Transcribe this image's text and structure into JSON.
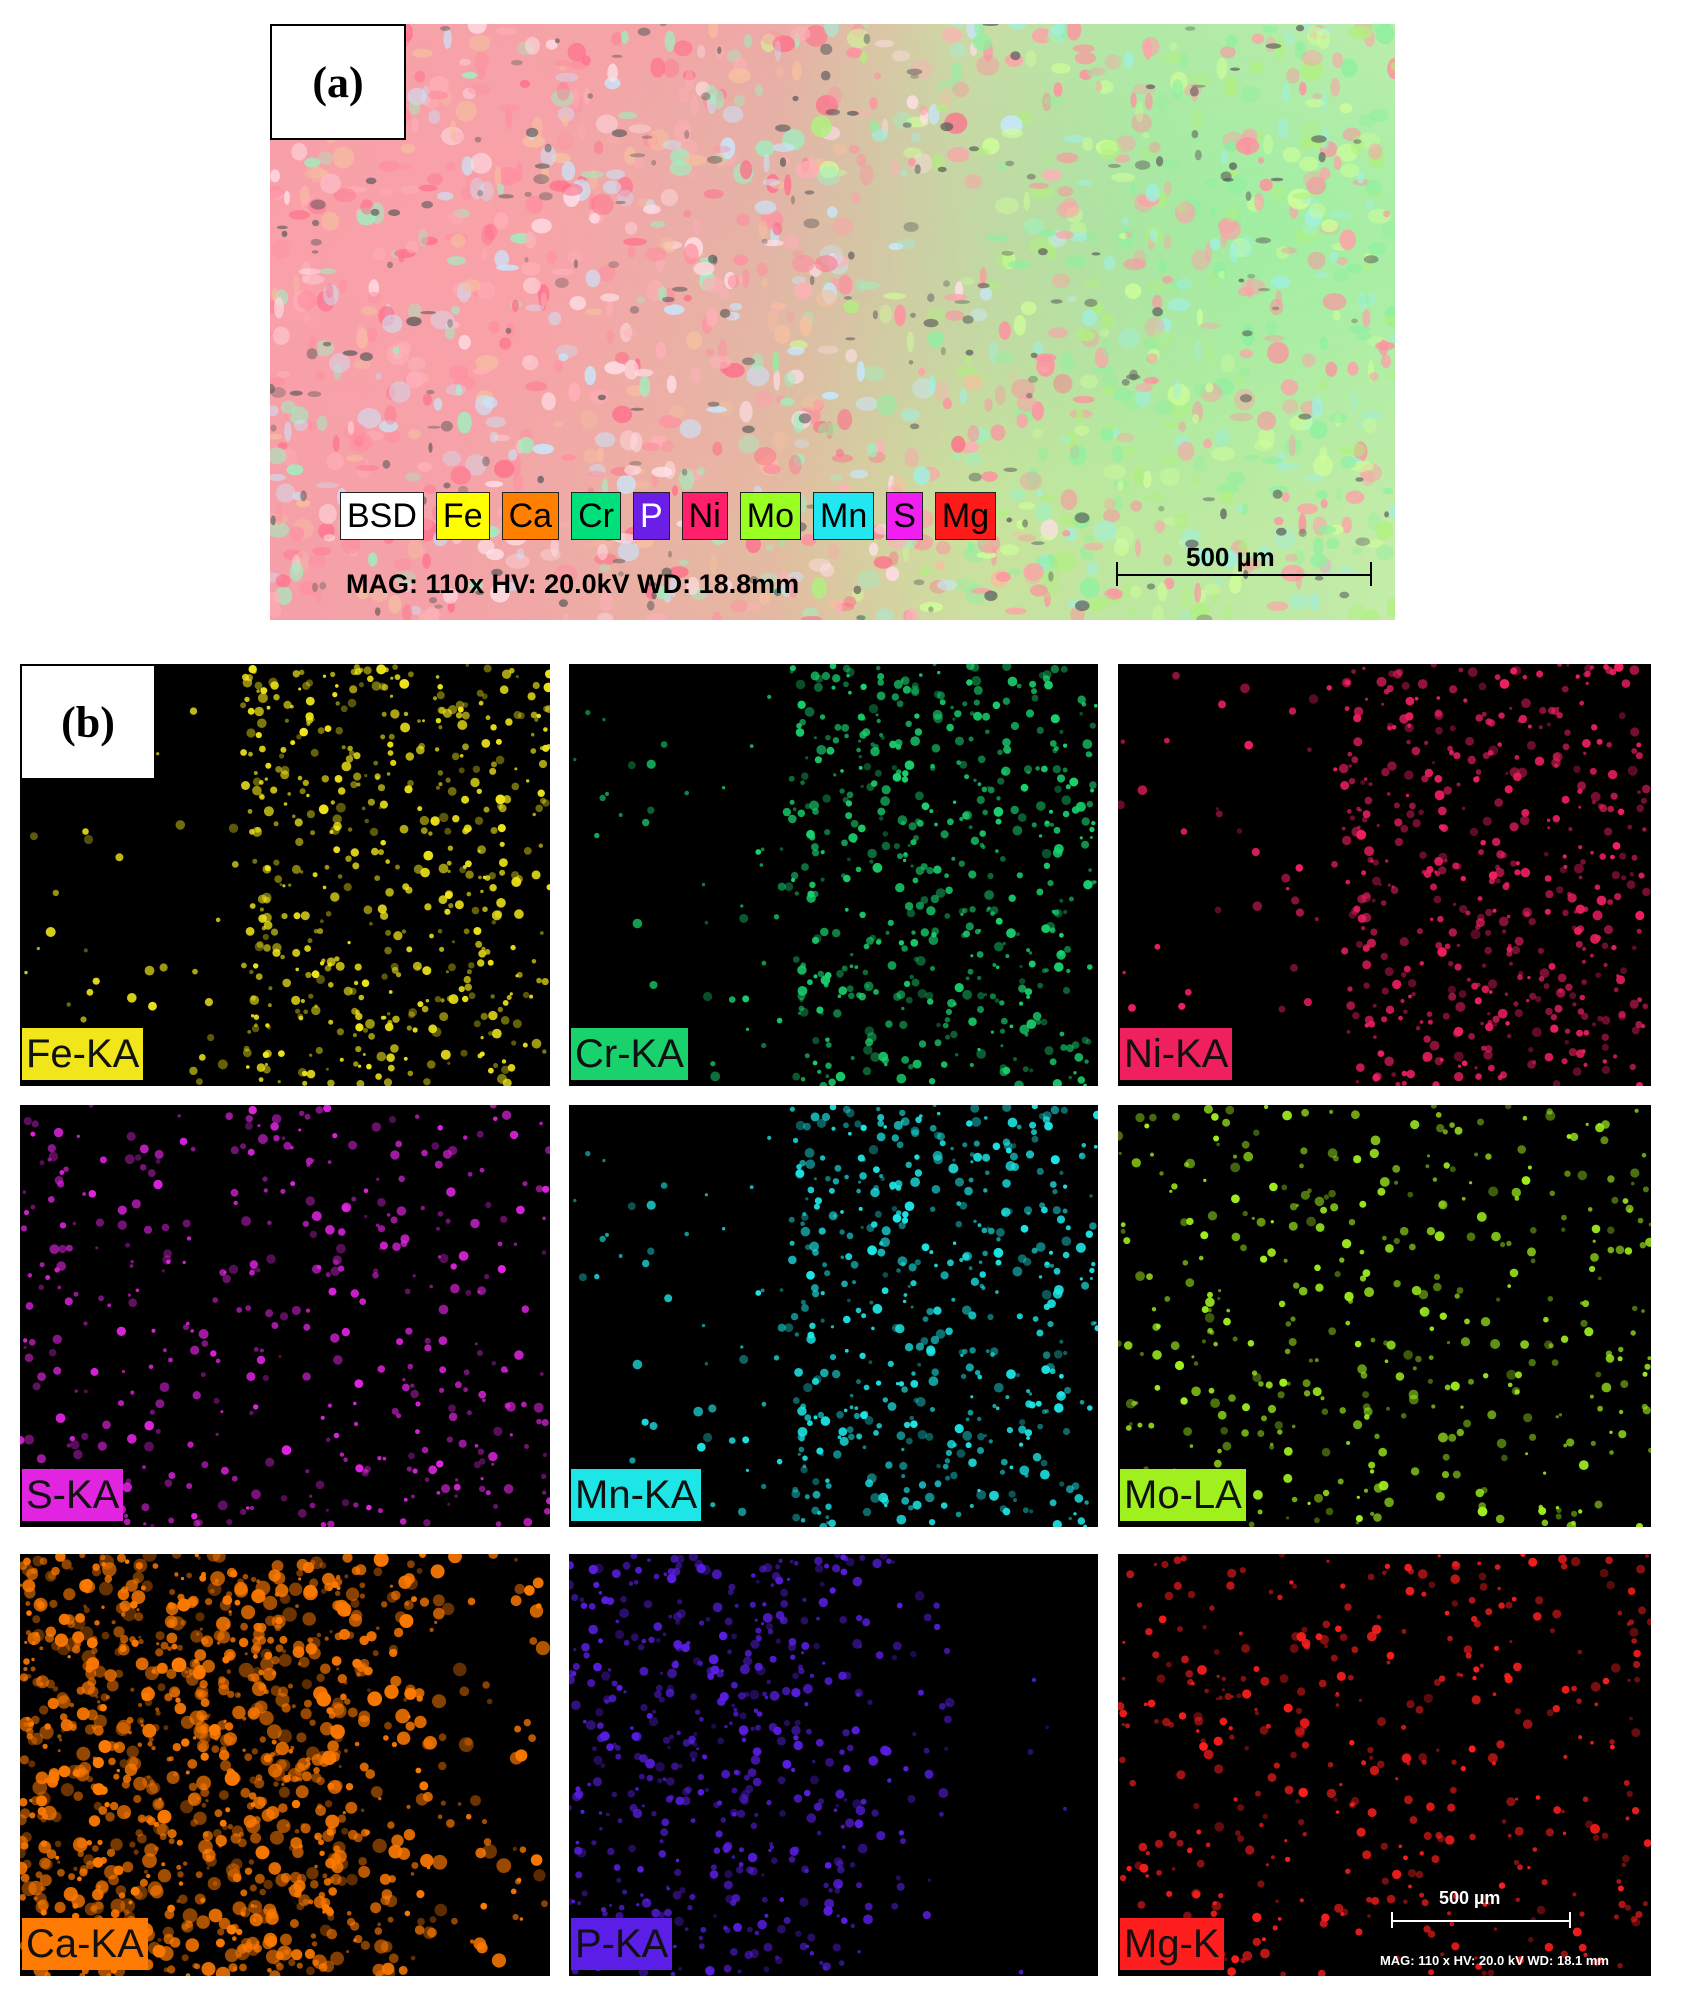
{
  "panel_a": {
    "label": "(a)",
    "legend": [
      {
        "text": "BSD",
        "color": "#ffffff",
        "text_color": "#000000"
      },
      {
        "text": "Fe",
        "color": "#ffff00",
        "text_color": "#000000"
      },
      {
        "text": "Ca",
        "color": "#ff8000",
        "text_color": "#000000"
      },
      {
        "text": "Cr",
        "color": "#00e07a",
        "text_color": "#000000"
      },
      {
        "text": "P",
        "color": "#6a1ee6",
        "text_color": "#ffffff"
      },
      {
        "text": "Ni",
        "color": "#ff1f6b",
        "text_color": "#000000"
      },
      {
        "text": "Mo",
        "color": "#99ff22",
        "text_color": "#000000"
      },
      {
        "text": "Mn",
        "color": "#22e6f0",
        "text_color": "#000000"
      },
      {
        "text": "S",
        "color": "#f01ef0",
        "text_color": "#000000"
      },
      {
        "text": "Mg",
        "color": "#ff1a1a",
        "text_color": "#000000"
      }
    ],
    "acquisition": "MAG: 110x  HV: 20.0kV  WD: 18.8mm",
    "scale_bar": "500 µm"
  },
  "panel_b": {
    "label": "(b)",
    "maps": [
      {
        "label": "Fe-KA",
        "color": "#f0e61a",
        "distribution": "right"
      },
      {
        "label": "Cr-KA",
        "color": "#19d26e",
        "distribution": "right"
      },
      {
        "label": "Ni-KA",
        "color": "#f0205f",
        "distribution": "right"
      },
      {
        "label": "S-KA",
        "color": "#e024e0",
        "distribution": "uniform"
      },
      {
        "label": "Mn-KA",
        "color": "#1ee6e6",
        "distribution": "right"
      },
      {
        "label": "Mo-LA",
        "color": "#a0f01e",
        "distribution": "uniform"
      },
      {
        "label": "Ca-KA",
        "color": "#ff7a00",
        "distribution": "left-dense"
      },
      {
        "label": "P-KA",
        "color": "#5a1ee6",
        "distribution": "left"
      },
      {
        "label": "Mg-K",
        "color": "#ff1e1e",
        "distribution": "uniform"
      }
    ],
    "scale_bar": "500 µm",
    "acquisition": "MAG: 110 x  HV: 20.0 kV  WD: 18.1 mm"
  }
}
